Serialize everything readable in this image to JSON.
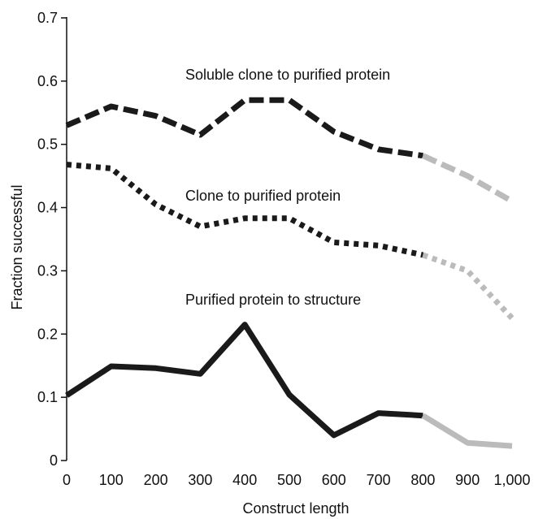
{
  "chart_data": {
    "type": "line",
    "title": "",
    "xlabel": "Construct length",
    "ylabel": "Fraction successful",
    "xlim": [
      0,
      1000
    ],
    "ylim": [
      0,
      0.7
    ],
    "x_ticks": [
      "0",
      "100",
      "200",
      "300",
      "400",
      "500",
      "600",
      "700",
      "800",
      "900",
      "1,000"
    ],
    "y_ticks": [
      "0",
      "0.1",
      "0.2",
      "0.3",
      "0.4",
      "0.5",
      "0.6",
      "0.7"
    ],
    "grid": false,
    "legend": "none",
    "highlight_color": "#1a1a1a",
    "extension_color": "#bbbbbb",
    "extension_from_x": 800,
    "series": [
      {
        "name": "Soluble clone to purified protein",
        "style": "dashed",
        "x": [
          0,
          100,
          200,
          300,
          400,
          500,
          600,
          700,
          800,
          900,
          1000
        ],
        "y": [
          0.53,
          0.56,
          0.545,
          0.515,
          0.57,
          0.57,
          0.52,
          0.492,
          0.482,
          0.45,
          0.41
        ]
      },
      {
        "name": "Clone to purified protein",
        "style": "dotted",
        "x": [
          0,
          100,
          200,
          300,
          400,
          500,
          600,
          700,
          800,
          900,
          1000
        ],
        "y": [
          0.468,
          0.462,
          0.405,
          0.37,
          0.383,
          0.383,
          0.345,
          0.34,
          0.325,
          0.3,
          0.225
        ]
      },
      {
        "name": "Purified protein to structure",
        "style": "solid",
        "x": [
          0,
          100,
          200,
          300,
          400,
          500,
          600,
          700,
          800,
          900,
          1000
        ],
        "y": [
          0.103,
          0.149,
          0.146,
          0.137,
          0.215,
          0.104,
          0.04,
          0.075,
          0.071,
          0.028,
          0.023
        ]
      }
    ]
  }
}
